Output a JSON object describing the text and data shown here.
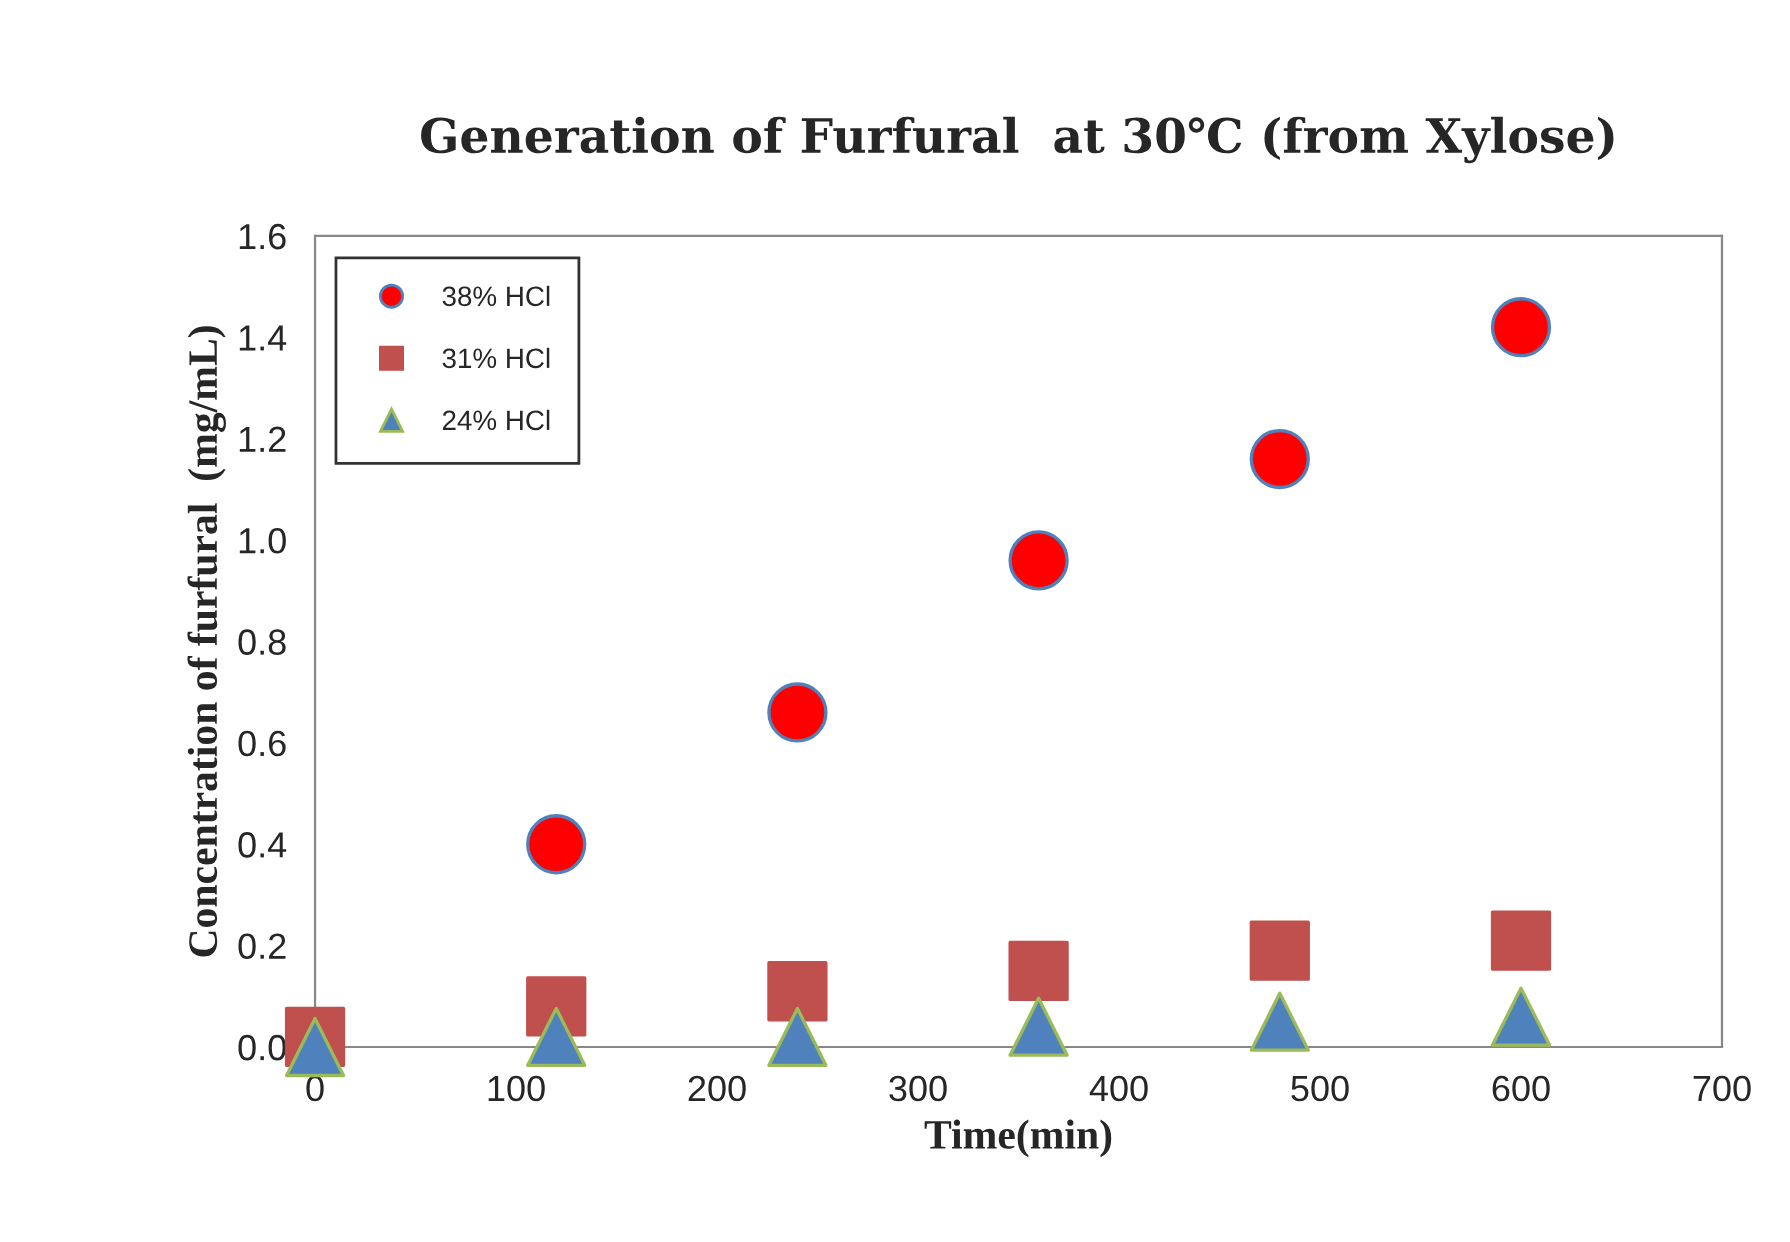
{
  "chart_data": {
    "type": "scatter",
    "title": "Generation of Furfural  at 30℃ (from Xylose)",
    "xlabel": "Time(min)",
    "ylabel": "Concentration of furfural  (mg/mL)",
    "xlim": [
      0,
      700
    ],
    "xticks": [
      0,
      100,
      200,
      300,
      400,
      500,
      600,
      700
    ],
    "ylim": [
      0,
      1.6
    ],
    "yticks": [
      {
        "value": 0,
        "label": "0.0"
      },
      0.2,
      0.4,
      0.6,
      0.8,
      {
        "value": 1.0,
        "label": "1.0"
      },
      1.2,
      1.4,
      1.6
    ],
    "legend": "top left",
    "grid": false,
    "series": [
      {
        "name": "38% HCl",
        "color": "#ff0000",
        "marker": "circle",
        "x": [
          120,
          240,
          360,
          480,
          600
        ],
        "values": [
          0.4,
          0.66,
          0.96,
          1.16,
          1.42
        ]
      },
      {
        "name": "31% HCl",
        "color": "#c0504d",
        "marker": "square",
        "x": [
          0,
          120,
          240,
          360,
          480,
          600
        ],
        "values": [
          0.02,
          0.08,
          0.11,
          0.15,
          0.19,
          0.21
        ]
      },
      {
        "name": "24% HCl",
        "color": "#4f81bd",
        "marker": "triangle",
        "x": [
          0,
          120,
          240,
          360,
          480,
          600
        ],
        "values": [
          0.0,
          0.02,
          0.02,
          0.04,
          0.05,
          0.06
        ]
      }
    ]
  }
}
